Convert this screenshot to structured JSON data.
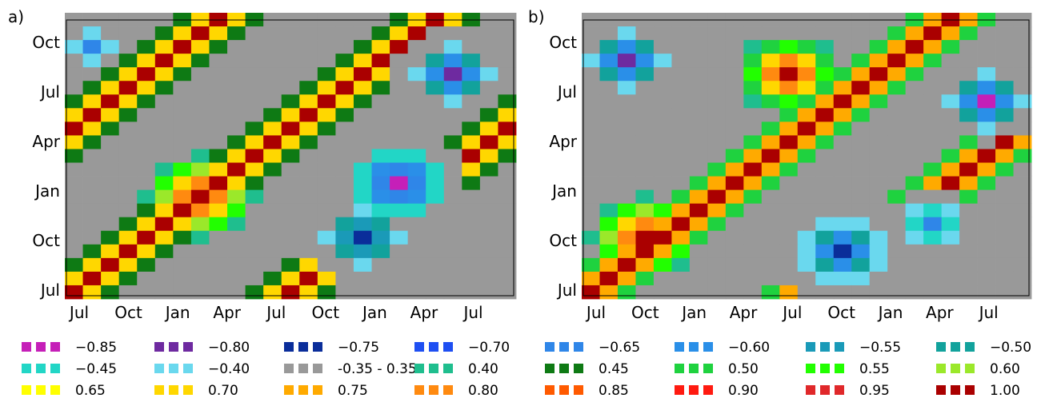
{
  "chart_data": [
    {
      "type": "heatmap",
      "panel_label": "a)",
      "yticks": [
        "Oct",
        "Jul",
        "Apr",
        "Jan",
        "Oct",
        "Jul"
      ],
      "xticks": [
        "Jul",
        "Oct",
        "Jan",
        "Apr",
        "Jul",
        "Oct",
        "Jan",
        "Apr",
        "Jul"
      ],
      "pattern": [
        {
          "kind": "band",
          "offset": 0,
          "halfwidth": 1.6,
          "peak": 1.0
        },
        {
          "kind": "band",
          "offset": -12,
          "halfwidth": 1.6,
          "peak": 1.0
        },
        {
          "kind": "band",
          "offset": 12,
          "halfwidth": 1.6,
          "peak": 1.0
        },
        {
          "kind": "blob",
          "x": 7,
          "y": 7,
          "r": 3.2,
          "peak": 1.0
        },
        {
          "kind": "blob",
          "x": 18,
          "y": 8,
          "r": 3.0,
          "peak": -0.85
        },
        {
          "kind": "blob",
          "x": 16,
          "y": 4,
          "r": 2.6,
          "peak": -0.75
        },
        {
          "kind": "blob",
          "x": 21,
          "y": 16,
          "r": 2.6,
          "peak": -0.8
        },
        {
          "kind": "blob",
          "x": 1,
          "y": 18,
          "r": 1.6,
          "peak": -0.65
        }
      ]
    },
    {
      "type": "heatmap",
      "panel_label": "b)",
      "yticks": [
        "Oct",
        "Jul",
        "Apr",
        "Jan",
        "Oct",
        "Jul"
      ],
      "xticks": [
        "Jul",
        "Oct",
        "Jan",
        "Apr",
        "Jul",
        "Oct",
        "Jan",
        "Apr",
        "Jul"
      ],
      "pattern": [
        {
          "kind": "band",
          "offset": 0,
          "halfwidth": 1.8,
          "peak": 1.0
        },
        {
          "kind": "band",
          "offset": 12,
          "halfwidth": 1.8,
          "peak": 1.0
        },
        {
          "kind": "blob",
          "x": 3,
          "y": 4,
          "r": 3.2,
          "peak": 1.0
        },
        {
          "kind": "blob",
          "x": 11,
          "y": 16,
          "r": 3.0,
          "peak": 1.0
        },
        {
          "kind": "blob",
          "x": 14,
          "y": 3,
          "r": 3.0,
          "peak": -0.75
        },
        {
          "kind": "blob",
          "x": 2,
          "y": 17,
          "r": 2.6,
          "peak": -0.8
        },
        {
          "kind": "blob",
          "x": 22,
          "y": 14,
          "r": 2.4,
          "peak": -0.85
        },
        {
          "kind": "blob",
          "x": 19,
          "y": 5,
          "r": 2.2,
          "peak": -0.65
        }
      ]
    }
  ],
  "legend": {
    "items": [
      {
        "label": "−0.85",
        "color": "#c51fb8"
      },
      {
        "label": "−0.80",
        "color": "#6e2aa0"
      },
      {
        "label": "−0.75",
        "color": "#0a2d9a"
      },
      {
        "label": "−0.70",
        "color": "#1e4ff2"
      },
      {
        "label": "−0.65",
        "color": "#2f86e8"
      },
      {
        "label": "−0.60",
        "color": "#2a8fe8"
      },
      {
        "label": "−0.55",
        "color": "#1a9ab8"
      },
      {
        "label": "−0.50",
        "color": "#12a29c"
      },
      {
        "label": "−0.45",
        "color": "#22d6c6"
      },
      {
        "label": "−0.40",
        "color": "#6ad8ee"
      },
      {
        "label": "-0.35 -  0.35",
        "color": "#999999"
      },
      {
        "label": "0.40",
        "color": "#1fbe8e"
      },
      {
        "label": "0.45",
        "color": "#0e7a14"
      },
      {
        "label": "0.50",
        "color": "#1fd23f"
      },
      {
        "label": "0.55",
        "color": "#22ff00"
      },
      {
        "label": "0.60",
        "color": "#9be82a"
      },
      {
        "label": "0.65",
        "color": "#ffff00"
      },
      {
        "label": "0.70",
        "color": "#ffd700"
      },
      {
        "label": "0.75",
        "color": "#ffaa00"
      },
      {
        "label": "0.80",
        "color": "#ff8a10"
      },
      {
        "label": "0.85",
        "color": "#ff5a00"
      },
      {
        "label": "0.90",
        "color": "#ff1a10"
      },
      {
        "label": "0.95",
        "color": "#e0282a"
      },
      {
        "label": "1.00",
        "color": "#aa0000"
      }
    ]
  }
}
